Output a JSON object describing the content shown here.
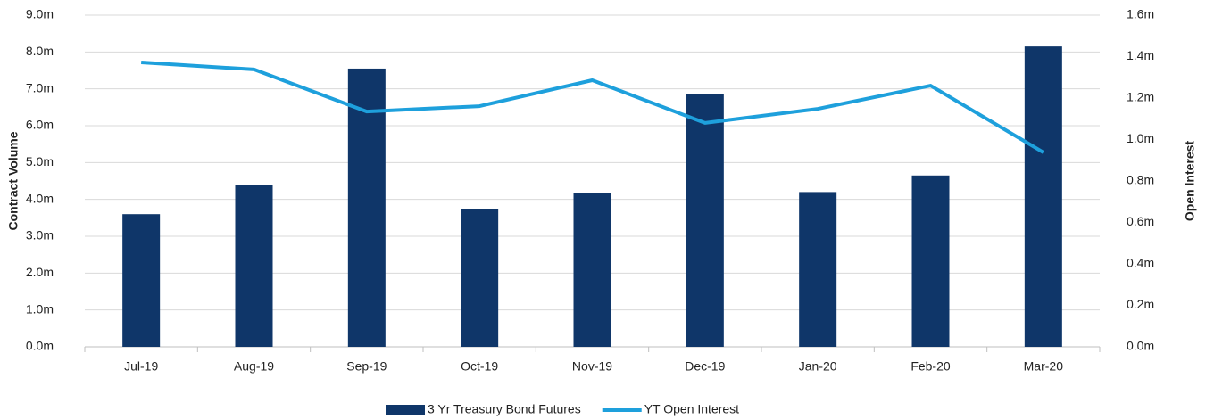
{
  "chart_data": {
    "type": "bar-line",
    "categories": [
      "Jul-19",
      "Aug-19",
      "Sep-19",
      "Oct-19",
      "Nov-19",
      "Dec-19",
      "Jan-20",
      "Feb-20",
      "Mar-20"
    ],
    "series": [
      {
        "name": "3 Yr Treasury Bond Futures",
        "color": "#0f3669",
        "type": "bar",
        "axis": "y",
        "values": [
          3600000,
          4380000,
          7550000,
          3750000,
          4180000,
          6870000,
          4200000,
          4650000,
          8150000
        ]
      },
      {
        "name": "YT Open Interest",
        "color": "#1ea0dc",
        "type": "line",
        "axis": "y2",
        "values": [
          1372000,
          1338000,
          1135000,
          1161000,
          1286000,
          1080000,
          1148000,
          1260000,
          938000
        ]
      }
    ],
    "ylabel": "Contract Volume",
    "y2label": "Open Interest",
    "ylim": [
      0,
      9000000
    ],
    "yticks": [
      {
        "value": 0,
        "label": "0.0m"
      },
      {
        "value": 1000000,
        "label": "1.0m"
      },
      {
        "value": 2000000,
        "label": "2.0m"
      },
      {
        "value": 3000000,
        "label": "3.0m"
      },
      {
        "value": 4000000,
        "label": "4.0m"
      },
      {
        "value": 5000000,
        "label": "5.0m"
      },
      {
        "value": 6000000,
        "label": "6.0m"
      },
      {
        "value": 7000000,
        "label": "7.0m"
      },
      {
        "value": 8000000,
        "label": "8.0m"
      },
      {
        "value": 9000000,
        "label": "9.0m"
      }
    ],
    "y2lim": [
      0,
      1600000
    ],
    "y2ticks": [
      {
        "value": 0,
        "label": "0.0m"
      },
      {
        "value": 200000,
        "label": "0.2m"
      },
      {
        "value": 400000,
        "label": "0.4m"
      },
      {
        "value": 600000,
        "label": "0.6m"
      },
      {
        "value": 800000,
        "label": "0.8m"
      },
      {
        "value": 1000000,
        "label": "1.0m"
      },
      {
        "value": 1200000,
        "label": "1.2m"
      },
      {
        "value": 1400000,
        "label": "1.4m"
      },
      {
        "value": 1600000,
        "label": "1.6m"
      }
    ],
    "grid": true,
    "legend": "bottom"
  }
}
